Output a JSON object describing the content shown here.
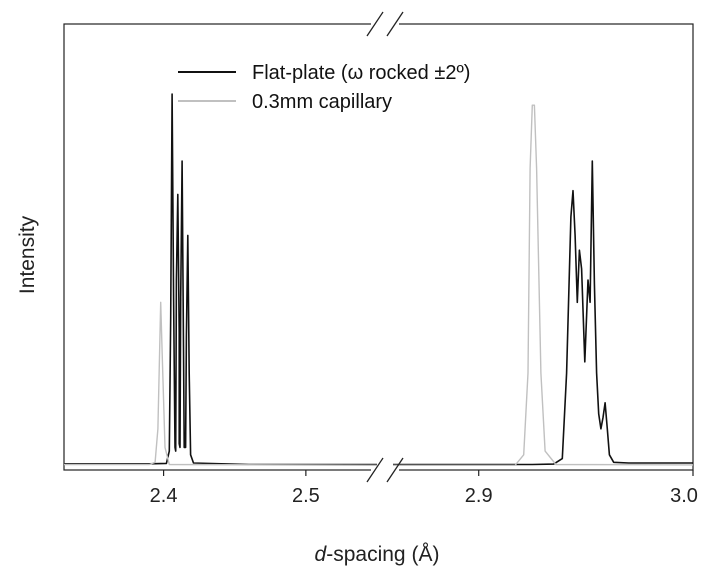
{
  "chart_data": {
    "type": "line",
    "xlabel_italic": "d",
    "xlabel_rest": "-spacing (Å)",
    "ylabel": "Intensity",
    "broken_x_axis": true,
    "x_segments": [
      {
        "xlim": [
          2.33,
          2.55
        ],
        "ticks": [
          2.4,
          2.5
        ],
        "tick_labels": [
          "2.4",
          "2.5"
        ]
      },
      {
        "xlim": [
          2.86,
          3.0
        ],
        "ticks": [
          2.9,
          3.0
        ],
        "tick_labels": [
          "2.9",
          "3.0"
        ]
      }
    ],
    "legend": {
      "position": "top-center",
      "entries": [
        {
          "label": "Flat-plate (ω rocked ±2º)",
          "color": "#111111"
        },
        {
          "label": "0.3mm capillary",
          "color": "#c0c0c0"
        }
      ]
    },
    "series": [
      {
        "name": "Flat-plate (ω rocked ±2º)",
        "color": "#111111",
        "segment_points": [
          [
            [
              2.33,
              0.006
            ],
            [
              2.39,
              0.006
            ],
            [
              2.402,
              0.007
            ],
            [
              2.404,
              0.04
            ],
            [
              2.405,
              0.4
            ],
            [
              2.406,
              1.0
            ],
            [
              2.407,
              0.45
            ],
            [
              2.408,
              0.05
            ],
            [
              2.4085,
              0.04
            ],
            [
              2.409,
              0.5
            ],
            [
              2.41,
              0.73
            ],
            [
              2.411,
              0.36
            ],
            [
              2.411,
              0.06
            ],
            [
              2.4115,
              0.05
            ],
            [
              2.412,
              0.45
            ],
            [
              2.413,
              0.82
            ],
            [
              2.414,
              0.32
            ],
            [
              2.4145,
              0.05
            ],
            [
              2.4155,
              0.05
            ],
            [
              2.416,
              0.35
            ],
            [
              2.417,
              0.62
            ],
            [
              2.418,
              0.25
            ],
            [
              2.419,
              0.03
            ],
            [
              2.421,
              0.008
            ],
            [
              2.46,
              0.004
            ],
            [
              2.55,
              0.004
            ]
          ],
          [
            [
              2.86,
              0.004
            ],
            [
              2.925,
              0.004
            ],
            [
              2.935,
              0.005
            ],
            [
              2.939,
              0.02
            ],
            [
              2.941,
              0.25
            ],
            [
              2.943,
              0.67
            ],
            [
              2.944,
              0.74
            ],
            [
              2.945,
              0.62
            ],
            [
              2.946,
              0.44
            ],
            [
              2.947,
              0.58
            ],
            [
              2.948,
              0.53
            ],
            [
              2.9495,
              0.28
            ],
            [
              2.951,
              0.5
            ],
            [
              2.952,
              0.44
            ],
            [
              2.953,
              0.82
            ],
            [
              2.954,
              0.49
            ],
            [
              2.955,
              0.25
            ],
            [
              2.956,
              0.14
            ],
            [
              2.957,
              0.1
            ],
            [
              2.958,
              0.13
            ],
            [
              2.959,
              0.17
            ],
            [
              2.96,
              0.1
            ],
            [
              2.961,
              0.03
            ],
            [
              2.963,
              0.01
            ],
            [
              2.97,
              0.008
            ],
            [
              3.0,
              0.008
            ]
          ]
        ]
      },
      {
        "name": "0.3mm capillary",
        "color": "#c0c0c0",
        "segment_points": [
          [
            [
              2.33,
              0.004
            ],
            [
              2.39,
              0.004
            ],
            [
              2.394,
              0.01
            ],
            [
              2.396,
              0.1
            ],
            [
              2.398,
              0.44
            ],
            [
              2.399,
              0.3
            ],
            [
              2.401,
              0.05
            ],
            [
              2.404,
              0.004
            ],
            [
              2.55,
              0.002
            ]
          ],
          [
            [
              2.86,
              0.002
            ],
            [
              2.917,
              0.002
            ],
            [
              2.921,
              0.03
            ],
            [
              2.923,
              0.25
            ],
            [
              2.924,
              0.8
            ],
            [
              2.925,
              0.97
            ],
            [
              2.926,
              0.97
            ],
            [
              2.927,
              0.8
            ],
            [
              2.929,
              0.25
            ],
            [
              2.931,
              0.04
            ],
            [
              2.936,
              0.004
            ],
            [
              3.0,
              0.003
            ]
          ]
        ]
      }
    ]
  }
}
